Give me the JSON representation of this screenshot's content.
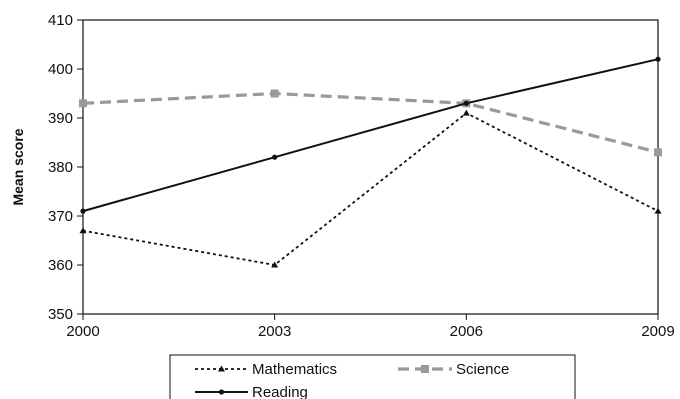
{
  "chart_data": {
    "type": "line",
    "title": "",
    "xlabel": "",
    "ylabel": "Mean score",
    "x": [
      "2000",
      "2003",
      "2006",
      "2009"
    ],
    "ylim": [
      350,
      410
    ],
    "yticks": [
      "350",
      "360",
      "370",
      "380",
      "390",
      "400",
      "410"
    ],
    "grid": false,
    "legend_position": "bottom",
    "series": [
      {
        "name": "Mathematics",
        "values": [
          367,
          360,
          391,
          371
        ],
        "color": "#111111",
        "style": "dotted",
        "marker": "triangle"
      },
      {
        "name": "Science",
        "values": [
          393,
          395,
          393,
          383
        ],
        "color": "#999999",
        "style": "dashed",
        "marker": "square"
      },
      {
        "name": "Reading",
        "values": [
          371,
          382,
          393,
          402
        ],
        "color": "#111111",
        "style": "solid",
        "marker": "circle"
      }
    ]
  }
}
